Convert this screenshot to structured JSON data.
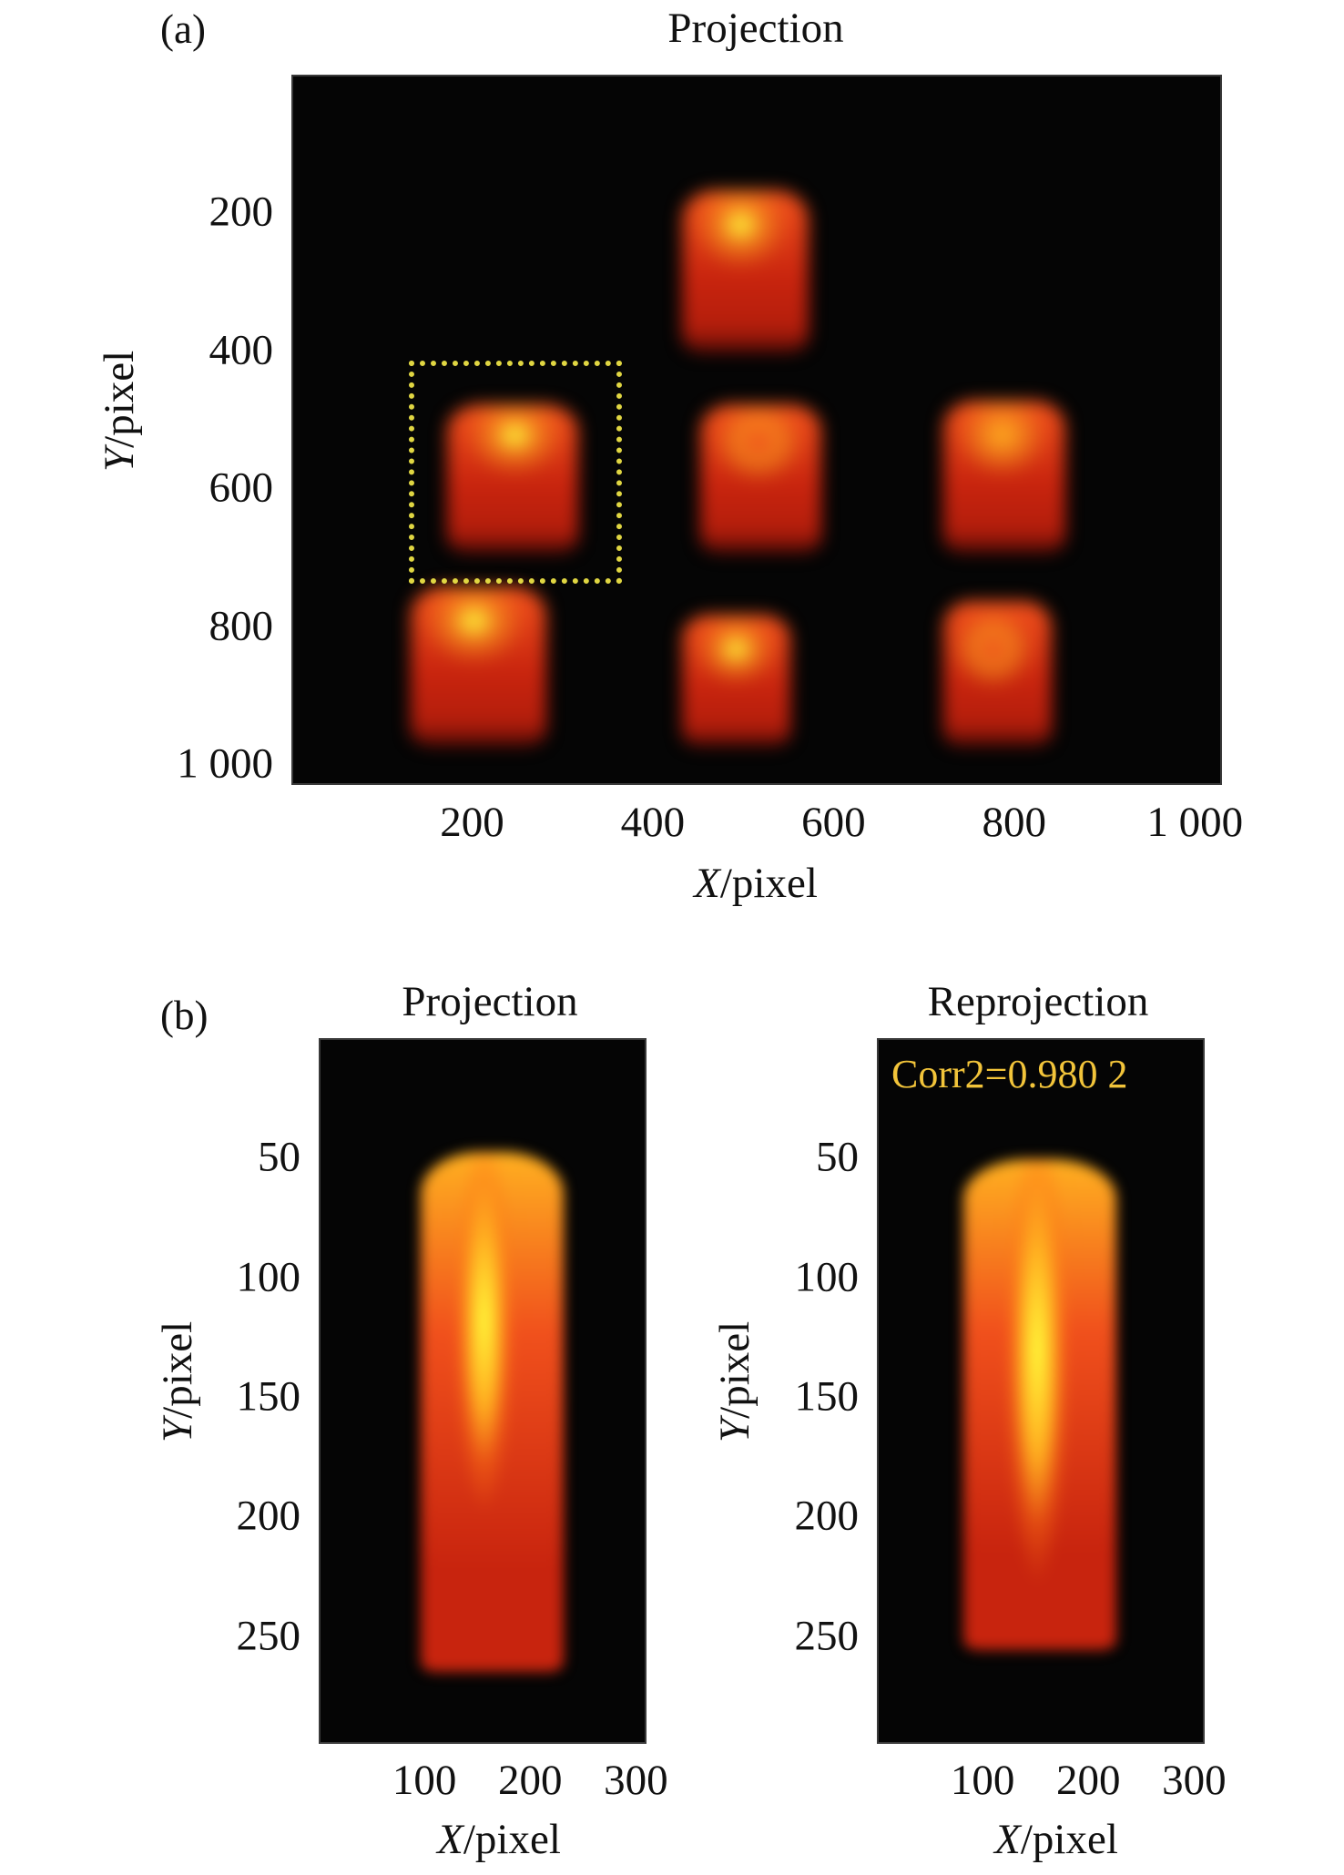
{
  "figure": {
    "panel_a_label": "(a)",
    "panel_b_label": "(b)",
    "colormap": [
      "#050505",
      "#5a0c06",
      "#c8240e",
      "#f0501c",
      "#ffb020",
      "#ffff3c"
    ],
    "roi_color": "#e0d642"
  },
  "chart_data": [
    {
      "id": "a",
      "type": "heatmap",
      "title": "Projection",
      "xlabel_var": "X",
      "xlabel_unit": "/pixel",
      "ylabel_var": "Y",
      "ylabel_unit": "/pixel",
      "xlim": [
        0,
        1030
      ],
      "ylim": [
        1030,
        0
      ],
      "y_inverted": true,
      "xticks": [
        200,
        400,
        600,
        800,
        1000
      ],
      "xtick_labels": [
        "200",
        "400",
        "600",
        "800",
        "1 000"
      ],
      "yticks": [
        200,
        400,
        600,
        800,
        1000
      ],
      "ytick_labels": [
        "200",
        "400",
        "600",
        "800",
        "1 000"
      ],
      "grid": false,
      "blobs": [
        {
          "name": "top-center",
          "x0": 430,
          "x1": 570,
          "y0": 165,
          "y1": 400,
          "peak_x": 495,
          "peak_y": 215,
          "peak_intensity": 1.0
        },
        {
          "name": "middle-left",
          "x0": 170,
          "x1": 315,
          "y0": 475,
          "y1": 690,
          "peak_x": 245,
          "peak_y": 520,
          "peak_intensity": 0.92
        },
        {
          "name": "middle-center",
          "x0": 450,
          "x1": 585,
          "y0": 475,
          "y1": 690,
          "peak_x": 515,
          "peak_y": 530,
          "peak_intensity": 0.65
        },
        {
          "name": "middle-right",
          "x0": 720,
          "x1": 855,
          "y0": 470,
          "y1": 690,
          "peak_x": 785,
          "peak_y": 520,
          "peak_intensity": 0.88
        },
        {
          "name": "bottom-left",
          "x0": 130,
          "x1": 280,
          "y0": 740,
          "y1": 970,
          "peak_x": 200,
          "peak_y": 790,
          "peak_intensity": 1.0
        },
        {
          "name": "bottom-center",
          "x0": 430,
          "x1": 550,
          "y0": 780,
          "y1": 970,
          "peak_x": 490,
          "peak_y": 830,
          "peak_intensity": 0.95
        },
        {
          "name": "bottom-right",
          "x0": 720,
          "x1": 840,
          "y0": 760,
          "y1": 970,
          "peak_x": 775,
          "peak_y": 830,
          "peak_intensity": 0.72
        }
      ],
      "roi_box": {
        "x0": 128,
        "x1": 364,
        "y0": 412,
        "y1": 736
      }
    },
    {
      "id": "b-left",
      "type": "heatmap",
      "title": "Projection",
      "xlabel_var": "X",
      "xlabel_unit": "/pixel",
      "ylabel_var": "Y",
      "ylabel_unit": "/pixel",
      "xlim": [
        0,
        310
      ],
      "ylim": [
        295,
        0
      ],
      "y_inverted": true,
      "xticks": [
        100,
        200,
        300
      ],
      "xtick_labels": [
        "100",
        "200",
        "300"
      ],
      "yticks": [
        50,
        100,
        150,
        200,
        250
      ],
      "ytick_labels": [
        "50",
        "100",
        "150",
        "200",
        "250"
      ],
      "grid": false,
      "blob": {
        "x0": 95,
        "x1": 230,
        "y0": 47,
        "y1": 264,
        "core_x": 155,
        "core_y0": 60,
        "core_y1": 175,
        "peak_intensity": 1.0
      }
    },
    {
      "id": "b-right",
      "type": "heatmap",
      "title": "Reprojection",
      "xlabel_var": "X",
      "xlabel_unit": "/pixel",
      "ylabel_var": "Y",
      "ylabel_unit": "/pixel",
      "xlim": [
        0,
        310
      ],
      "ylim": [
        295,
        0
      ],
      "y_inverted": true,
      "xticks": [
        100,
        200,
        300
      ],
      "xtick_labels": [
        "100",
        "200",
        "300"
      ],
      "yticks": [
        50,
        100,
        150,
        200,
        250
      ],
      "ytick_labels": [
        "50",
        "100",
        "150",
        "200",
        "250"
      ],
      "grid": false,
      "annotation": "Corr2=0.980 2",
      "blob": {
        "x0": 80,
        "x1": 225,
        "y0": 50,
        "y1": 255,
        "core_x": 150,
        "core_y0": 60,
        "core_y1": 200,
        "peak_intensity": 1.0
      }
    }
  ]
}
